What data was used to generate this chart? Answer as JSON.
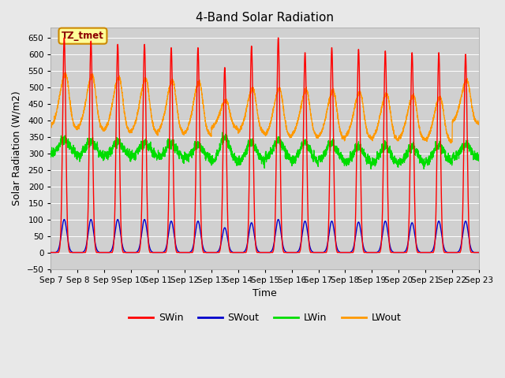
{
  "title": "4-Band Solar Radiation",
  "xlabel": "Time",
  "ylabel": "Solar Radiation (W/m2)",
  "ylim": [
    -50,
    680
  ],
  "background_color": "#e8e8e8",
  "plot_bg_color": "#d0d0d0",
  "grid_color": "#ffffff",
  "annotation_text": "TZ_tmet",
  "annotation_bg": "#ffff99",
  "annotation_border": "#cc8800",
  "colors": {
    "SWin": "#ff0000",
    "SWout": "#0000cc",
    "LWin": "#00dd00",
    "LWout": "#ff9900"
  },
  "start_day": 7,
  "end_day": 22,
  "n_days": 16,
  "sw_peaks": [
    650,
    640,
    630,
    630,
    620,
    620,
    560,
    625,
    650,
    605,
    620,
    615,
    610,
    605,
    605,
    600
  ],
  "swout_peaks": [
    100,
    100,
    100,
    100,
    95,
    95,
    75,
    90,
    100,
    95,
    95,
    92,
    95,
    90,
    95,
    95
  ],
  "lwout_night": [
    375,
    370,
    365,
    360,
    360,
    355,
    375,
    360,
    350,
    350,
    345,
    345,
    340,
    340,
    335,
    390
  ],
  "lwout_peak": [
    540,
    535,
    530,
    525,
    520,
    515,
    460,
    495,
    495,
    490,
    490,
    485,
    480,
    475,
    470,
    520
  ],
  "lwin_base": [
    295,
    290,
    290,
    288,
    285,
    282,
    270,
    272,
    282,
    272,
    278,
    268,
    268,
    268,
    272,
    282
  ],
  "lwin_amp": [
    48,
    45,
    44,
    44,
    44,
    43,
    78,
    60,
    55,
    60,
    52,
    52,
    52,
    52,
    52,
    45
  ]
}
